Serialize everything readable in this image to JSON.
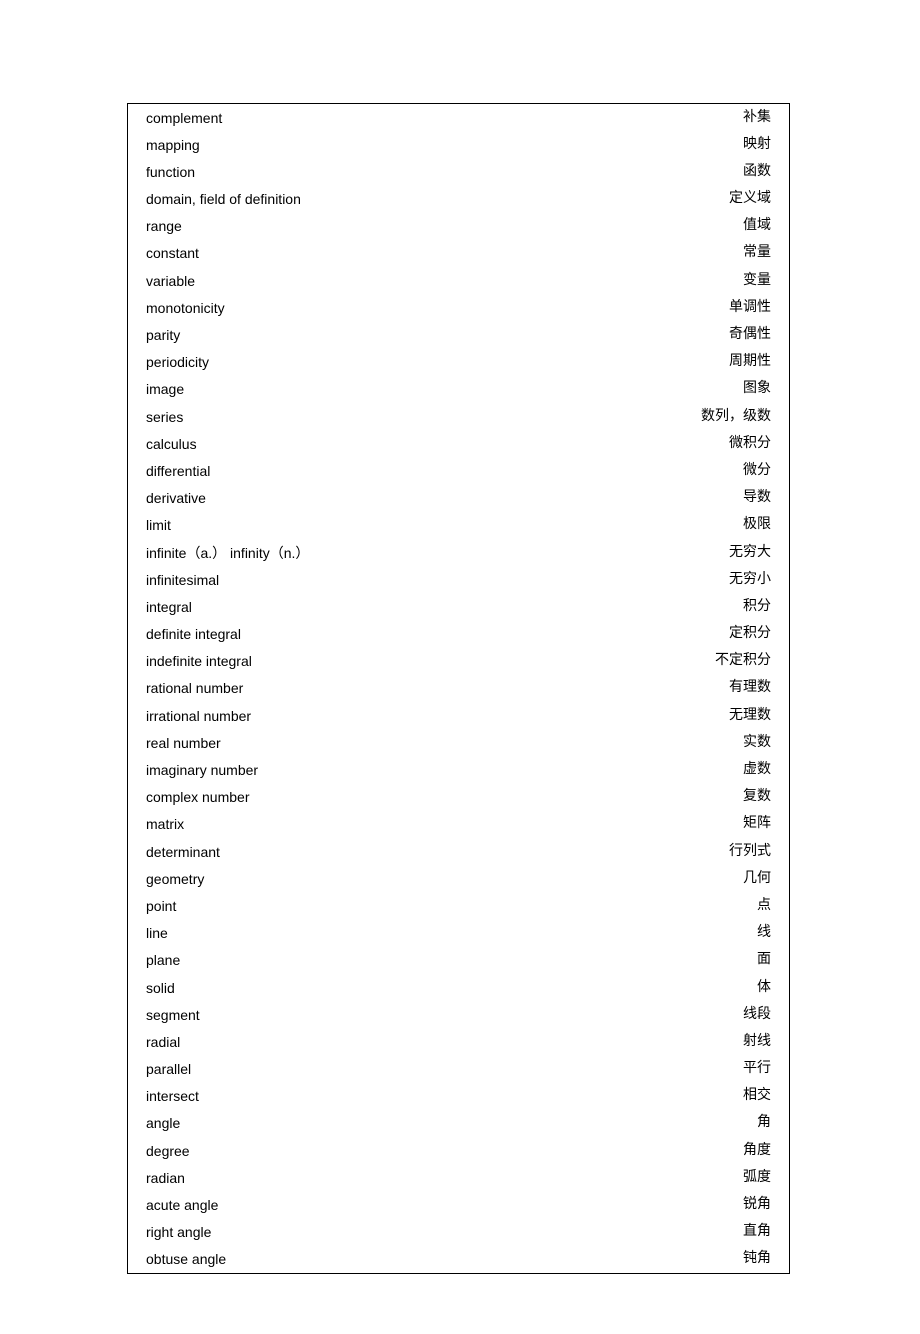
{
  "table": {
    "rows": [
      {
        "en": "complement",
        "zh": "补集"
      },
      {
        "en": "mapping",
        "zh": "映射"
      },
      {
        "en": "function",
        "zh": "函数"
      },
      {
        "en": "domain, field of definition",
        "zh": "定义域"
      },
      {
        "en": "range",
        "zh": "值域"
      },
      {
        "en": "constant",
        "zh": "常量"
      },
      {
        "en": "variable",
        "zh": "变量"
      },
      {
        "en": "monotonicity",
        "zh": "单调性"
      },
      {
        "en": "parity",
        "zh": "奇偶性"
      },
      {
        "en": "periodicity",
        "zh": "周期性"
      },
      {
        "en": "image",
        "zh": "图象"
      },
      {
        "en": "series",
        "zh": "数列，级数"
      },
      {
        "en": "calculus",
        "zh": "微积分"
      },
      {
        "en": "differential",
        "zh": "微分"
      },
      {
        "en": "derivative",
        "zh": "导数"
      },
      {
        "en": "limit",
        "zh": "极限"
      },
      {
        "en": "infinite（a.）  infinity（n.）",
        "zh": "无穷大"
      },
      {
        "en": "infinitesimal",
        "zh": "无穷小"
      },
      {
        "en": "integral",
        "zh": "积分"
      },
      {
        "en": "definite integral",
        "zh": "定积分"
      },
      {
        "en": "indefinite integral",
        "zh": "不定积分"
      },
      {
        "en": "rational number",
        "zh": "有理数"
      },
      {
        "en": "irrational number",
        "zh": "无理数"
      },
      {
        "en": "real number",
        "zh": "实数"
      },
      {
        "en": "imaginary number",
        "zh": "虚数"
      },
      {
        "en": "complex number",
        "zh": "复数"
      },
      {
        "en": "matrix",
        "zh": "矩阵"
      },
      {
        "en": "determinant",
        "zh": "行列式"
      },
      {
        "en": "geometry",
        "zh": "几何"
      },
      {
        "en": "point",
        "zh": "点"
      },
      {
        "en": "line",
        "zh": "线"
      },
      {
        "en": "plane",
        "zh": "面"
      },
      {
        "en": "solid",
        "zh": "体"
      },
      {
        "en": "segment",
        "zh": "线段"
      },
      {
        "en": "radial",
        "zh": "射线"
      },
      {
        "en": "parallel",
        "zh": "平行"
      },
      {
        "en": "intersect",
        "zh": "相交"
      },
      {
        "en": "angle",
        "zh": "角"
      },
      {
        "en": "degree",
        "zh": "角度"
      },
      {
        "en": "radian",
        "zh": "弧度"
      },
      {
        "en": "acute angle",
        "zh": "锐角"
      },
      {
        "en": "right angle",
        "zh": "直角"
      },
      {
        "en": "obtuse angle",
        "zh": "钝角"
      }
    ]
  }
}
